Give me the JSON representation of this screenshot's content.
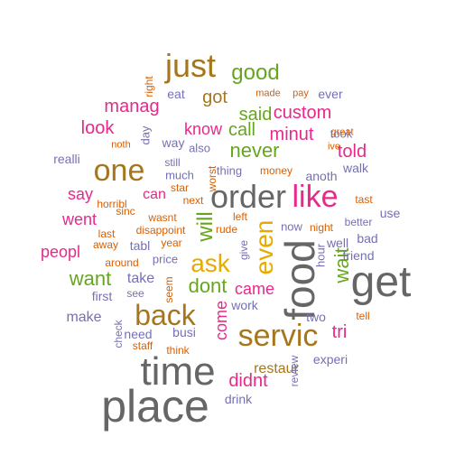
{
  "palette": {
    "gray": "#666666",
    "olive": "#A6761D",
    "green": "#66A61E",
    "pink": "#E7298A",
    "lavender": "#7570B3",
    "orange": "#D95F02",
    "gold": "#E6AB02",
    "teal": "#1B9E77"
  },
  "words": [
    {
      "text": "place",
      "color": "gray"
    },
    {
      "text": "time",
      "color": "gray"
    },
    {
      "text": "get",
      "color": "gray"
    },
    {
      "text": "food",
      "color": "gray"
    },
    {
      "text": "servic",
      "color": "olive"
    },
    {
      "text": "order",
      "color": "gray"
    },
    {
      "text": "like",
      "color": "pink"
    },
    {
      "text": "one",
      "color": "olive"
    },
    {
      "text": "just",
      "color": "olive"
    },
    {
      "text": "back",
      "color": "olive"
    },
    {
      "text": "ask",
      "color": "gold"
    },
    {
      "text": "even",
      "color": "gold"
    },
    {
      "text": "will",
      "color": "green"
    },
    {
      "text": "good",
      "color": "green"
    },
    {
      "text": "never",
      "color": "green"
    },
    {
      "text": "call",
      "color": "green"
    },
    {
      "text": "got",
      "color": "olive"
    },
    {
      "text": "said",
      "color": "green"
    },
    {
      "text": "custom",
      "color": "pink"
    },
    {
      "text": "told",
      "color": "pink"
    },
    {
      "text": "look",
      "color": "pink"
    },
    {
      "text": "minut",
      "color": "pink"
    },
    {
      "text": "want",
      "color": "green"
    },
    {
      "text": "dont",
      "color": "green"
    },
    {
      "text": "wait",
      "color": "green"
    },
    {
      "text": "came",
      "color": "pink"
    },
    {
      "text": "come",
      "color": "pink"
    },
    {
      "text": "didnt",
      "color": "pink"
    },
    {
      "text": "went",
      "color": "pink"
    },
    {
      "text": "say",
      "color": "pink"
    },
    {
      "text": "manag",
      "color": "pink"
    },
    {
      "text": "know",
      "color": "pink"
    },
    {
      "text": "peopl",
      "color": "pink"
    },
    {
      "text": "tri",
      "color": "pink"
    },
    {
      "text": "take",
      "color": "lavender"
    },
    {
      "text": "make",
      "color": "lavender"
    },
    {
      "text": "restaur",
      "color": "olive"
    },
    {
      "text": "can",
      "color": "pink"
    },
    {
      "text": "work",
      "color": "lavender"
    },
    {
      "text": "first",
      "color": "lavender"
    },
    {
      "text": "need",
      "color": "lavender"
    },
    {
      "text": "realli",
      "color": "lavender"
    },
    {
      "text": "two",
      "color": "lavender"
    },
    {
      "text": "experi",
      "color": "lavender"
    },
    {
      "text": "drink",
      "color": "lavender"
    },
    {
      "text": "busi",
      "color": "lavender"
    },
    {
      "text": "tabl",
      "color": "lavender"
    },
    {
      "text": "friend",
      "color": "lavender"
    },
    {
      "text": "walk",
      "color": "lavender"
    },
    {
      "text": "bad",
      "color": "lavender"
    },
    {
      "text": "well",
      "color": "lavender"
    },
    {
      "text": "use",
      "color": "lavender"
    },
    {
      "text": "eat",
      "color": "lavender"
    },
    {
      "text": "way",
      "color": "lavender"
    },
    {
      "text": "anoth",
      "color": "lavender"
    },
    {
      "text": "ever",
      "color": "lavender"
    },
    {
      "text": "price",
      "color": "lavender"
    },
    {
      "text": "much",
      "color": "lavender"
    },
    {
      "text": "hour",
      "color": "lavender"
    },
    {
      "text": "thing",
      "color": "lavender"
    },
    {
      "text": "took",
      "color": "lavender"
    },
    {
      "text": "day",
      "color": "lavender"
    },
    {
      "text": "also",
      "color": "lavender"
    },
    {
      "text": "still",
      "color": "lavender"
    },
    {
      "text": "now",
      "color": "lavender"
    },
    {
      "text": "see",
      "color": "lavender"
    },
    {
      "text": "give",
      "color": "lavender"
    },
    {
      "text": "better",
      "color": "lavender"
    },
    {
      "text": "made",
      "color": "orange"
    },
    {
      "text": "pay",
      "color": "orange"
    },
    {
      "text": "great",
      "color": "orange"
    },
    {
      "text": "ive",
      "color": "orange"
    },
    {
      "text": "noth",
      "color": "orange"
    },
    {
      "text": "money",
      "color": "orange"
    },
    {
      "text": "tast",
      "color": "orange"
    },
    {
      "text": "star",
      "color": "orange"
    },
    {
      "text": "horribl",
      "color": "orange"
    },
    {
      "text": "next",
      "color": "orange"
    },
    {
      "text": "wasnt",
      "color": "orange"
    },
    {
      "text": "sinc",
      "color": "orange"
    },
    {
      "text": "left",
      "color": "orange"
    },
    {
      "text": "night",
      "color": "orange"
    },
    {
      "text": "disappoint",
      "color": "orange"
    },
    {
      "text": "last",
      "color": "orange"
    },
    {
      "text": "rude",
      "color": "orange"
    },
    {
      "text": "away",
      "color": "orange"
    },
    {
      "text": "year",
      "color": "orange"
    },
    {
      "text": "around",
      "color": "orange"
    },
    {
      "text": "seem",
      "color": "orange"
    },
    {
      "text": "staff",
      "color": "orange"
    },
    {
      "text": "think",
      "color": "orange"
    },
    {
      "text": "tell",
      "color": "orange"
    },
    {
      "text": "right",
      "color": "orange"
    },
    {
      "text": "worst",
      "color": "orange"
    },
    {
      "text": "check",
      "color": "lavender"
    },
    {
      "text": "review",
      "color": "lavender"
    }
  ]
}
